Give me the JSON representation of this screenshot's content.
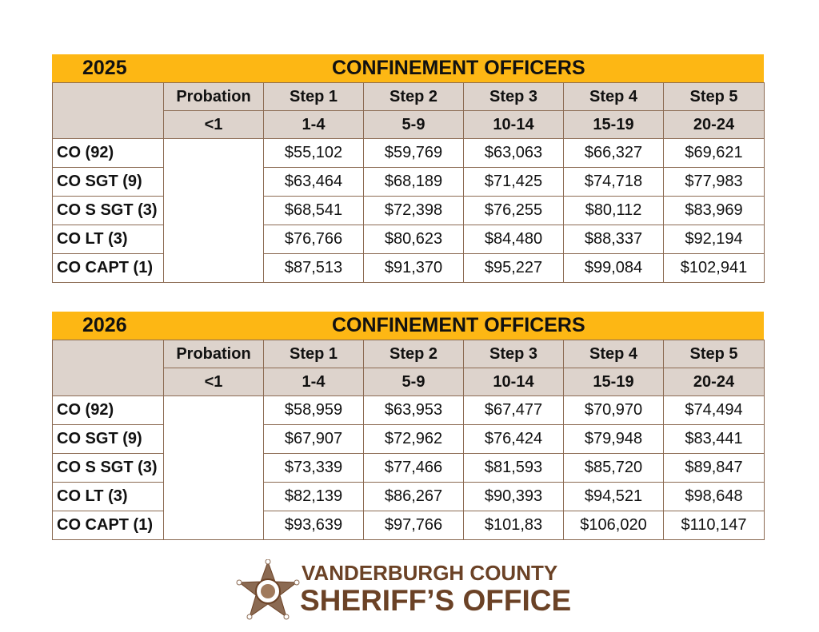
{
  "headers": {
    "probation": "Probation",
    "probation_sub": "<1",
    "steps": [
      [
        "Step 1",
        "1-4"
      ],
      [
        "Step 2",
        "5-9"
      ],
      [
        "Step 3",
        "10-14"
      ],
      [
        "Step 4",
        "15-19"
      ],
      [
        "Step 5",
        "20-24"
      ]
    ]
  },
  "tables": [
    {
      "year": "2025",
      "title": "CONFINEMENT OFFICERS",
      "rows": [
        {
          "label": "CO (92)",
          "values": [
            "$55,102",
            "$59,769",
            "$63,063",
            "$66,327",
            "$69,621"
          ]
        },
        {
          "label": "CO SGT (9)",
          "values": [
            "$63,464",
            "$68,189",
            "$71,425",
            "$74,718",
            "$77,983"
          ]
        },
        {
          "label": "CO S SGT (3)",
          "values": [
            "$68,541",
            "$72,398",
            "$76,255",
            "$80,112",
            "$83,969"
          ]
        },
        {
          "label": "CO LT (3)",
          "values": [
            "$76,766",
            "$80,623",
            "$84,480",
            "$88,337",
            "$92,194"
          ]
        },
        {
          "label": "CO CAPT (1)",
          "values": [
            "$87,513",
            "$91,370",
            "$95,227",
            "$99,084",
            "$102,941"
          ]
        }
      ]
    },
    {
      "year": "2026",
      "title": "CONFINEMENT OFFICERS",
      "rows": [
        {
          "label": "CO (92)",
          "values": [
            "$58,959",
            "$63,953",
            "$67,477",
            "$70,970",
            "$74,494"
          ]
        },
        {
          "label": "CO SGT (9)",
          "values": [
            "$67,907",
            "$72,962",
            "$76,424",
            "$79,948",
            "$83,441"
          ]
        },
        {
          "label": "CO S SGT (3)",
          "values": [
            "$73,339",
            "$77,466",
            "$81,593",
            "$85,720",
            "$89,847"
          ]
        },
        {
          "label": "CO LT (3)",
          "values": [
            "$82,139",
            "$86,267",
            "$90,393",
            "$94,521",
            "$98,648"
          ]
        },
        {
          "label": "CO CAPT (1)",
          "values": [
            "$93,639",
            "$97,766",
            "$101,83",
            "$106,020",
            "$110,147"
          ]
        }
      ]
    }
  ],
  "logo": {
    "line1": "VANDERBURGH COUNTY",
    "line2": "SHERIFF’S OFFICE"
  },
  "colors": {
    "bar": "#fdb714",
    "header": "#ddd3cc",
    "brand": "#6b4226"
  }
}
